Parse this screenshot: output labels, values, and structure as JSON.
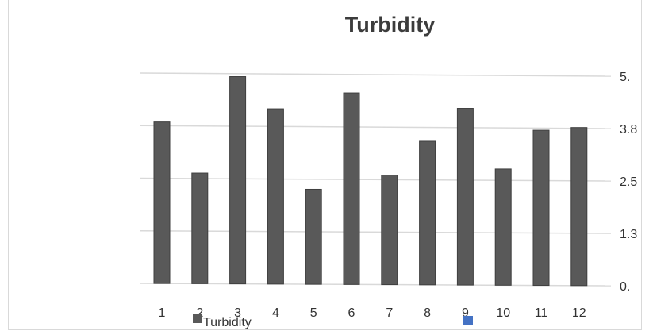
{
  "chart_data": {
    "type": "bar",
    "title": "Turbidity",
    "categories": [
      "1",
      "2",
      "3",
      "4",
      "5",
      "6",
      "7",
      "8",
      "9",
      "10",
      "11",
      "12"
    ],
    "series": [
      {
        "name": "Turbidity",
        "values": [
          3.84,
          2.63,
          4.93,
          4.17,
          2.26,
          4.56,
          2.61,
          3.42,
          4.21,
          2.77,
          3.7,
          3.77
        ],
        "color": "#595959"
      }
    ],
    "y_ticks": [
      "0.",
      "1.3",
      "2.5",
      "3.8",
      "5."
    ],
    "ylim": [
      0,
      5
    ],
    "y_axis_side": "right",
    "grid": true,
    "legend": {
      "position": "bottom",
      "entries": [
        {
          "label": "Turbidity",
          "color": "#595959"
        },
        {
          "label": "",
          "color": "#4472c4"
        }
      ]
    }
  }
}
